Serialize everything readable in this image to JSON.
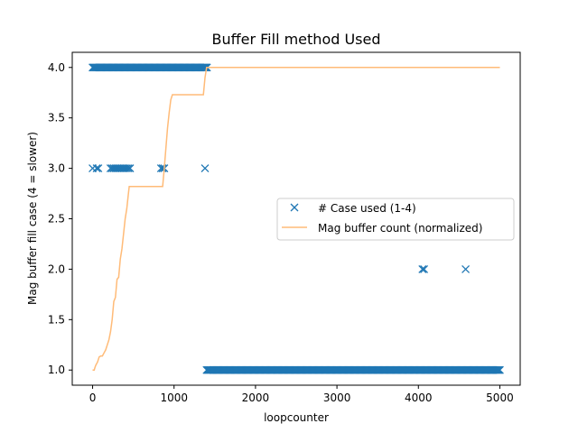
{
  "chart_data": {
    "type": "scatter",
    "title": "Buffer Fill method Used",
    "xlabel": "loopcounter",
    "ylabel": "Mag buffer fill case (4 = slower)",
    "xlim": [
      -250,
      5250
    ],
    "ylim": [
      0.85,
      4.15
    ],
    "xticks": [
      0,
      1000,
      2000,
      3000,
      4000,
      5000
    ],
    "yticks": [
      1.0,
      1.5,
      2.0,
      2.5,
      3.0,
      3.5,
      4.0
    ],
    "xtick_labels": [
      "0",
      "1000",
      "2000",
      "3000",
      "4000",
      "5000"
    ],
    "ytick_labels": [
      "1.0",
      "1.5",
      "2.0",
      "2.5",
      "3.0",
      "3.5",
      "4.0"
    ],
    "legend_position": "center-right",
    "grid": false,
    "series": [
      {
        "name": "# Case used (1-4)",
        "kind": "scatter",
        "marker": "x",
        "color": "#1f77b4",
        "segments": [
          {
            "x_start": 0,
            "x_end": 1410,
            "y": 4,
            "step": 12
          },
          {
            "x_start": 1400,
            "x_end": 5000,
            "y": 1,
            "step": 12
          }
        ],
        "points": [
          {
            "x": 0,
            "y": 3
          },
          {
            "x": 50,
            "y": 3
          },
          {
            "x": 70,
            "y": 3
          },
          {
            "x": 220,
            "y": 3
          },
          {
            "x": 240,
            "y": 3
          },
          {
            "x": 260,
            "y": 3
          },
          {
            "x": 280,
            "y": 3
          },
          {
            "x": 300,
            "y": 3
          },
          {
            "x": 320,
            "y": 3
          },
          {
            "x": 340,
            "y": 3
          },
          {
            "x": 360,
            "y": 3
          },
          {
            "x": 380,
            "y": 3
          },
          {
            "x": 400,
            "y": 3
          },
          {
            "x": 420,
            "y": 3
          },
          {
            "x": 440,
            "y": 3
          },
          {
            "x": 460,
            "y": 3
          },
          {
            "x": 840,
            "y": 3
          },
          {
            "x": 860,
            "y": 3
          },
          {
            "x": 880,
            "y": 3
          },
          {
            "x": 1380,
            "y": 3
          },
          {
            "x": 4050,
            "y": 2
          },
          {
            "x": 4070,
            "y": 2
          },
          {
            "x": 4580,
            "y": 2
          }
        ]
      },
      {
        "name": "Mag buffer count (normalized)",
        "kind": "line",
        "color": "#ffbb78",
        "x": [
          0,
          20,
          30,
          40,
          60,
          80,
          100,
          120,
          140,
          160,
          180,
          200,
          220,
          240,
          260,
          280,
          300,
          320,
          340,
          360,
          380,
          400,
          420,
          440,
          450,
          460,
          600,
          700,
          860,
          880,
          900,
          920,
          940,
          960,
          980,
          1000,
          1200,
          1360,
          1380,
          1400,
          1420,
          5000
        ],
        "y": [
          1.0,
          1.0,
          1.03,
          1.05,
          1.08,
          1.13,
          1.14,
          1.14,
          1.17,
          1.2,
          1.25,
          1.3,
          1.38,
          1.5,
          1.68,
          1.72,
          1.9,
          1.92,
          2.1,
          2.2,
          2.35,
          2.5,
          2.6,
          2.75,
          2.82,
          2.82,
          2.82,
          2.82,
          2.82,
          3.0,
          3.2,
          3.4,
          3.55,
          3.68,
          3.73,
          3.73,
          3.73,
          3.73,
          3.9,
          4.0,
          4.0,
          4.0
        ]
      }
    ]
  }
}
